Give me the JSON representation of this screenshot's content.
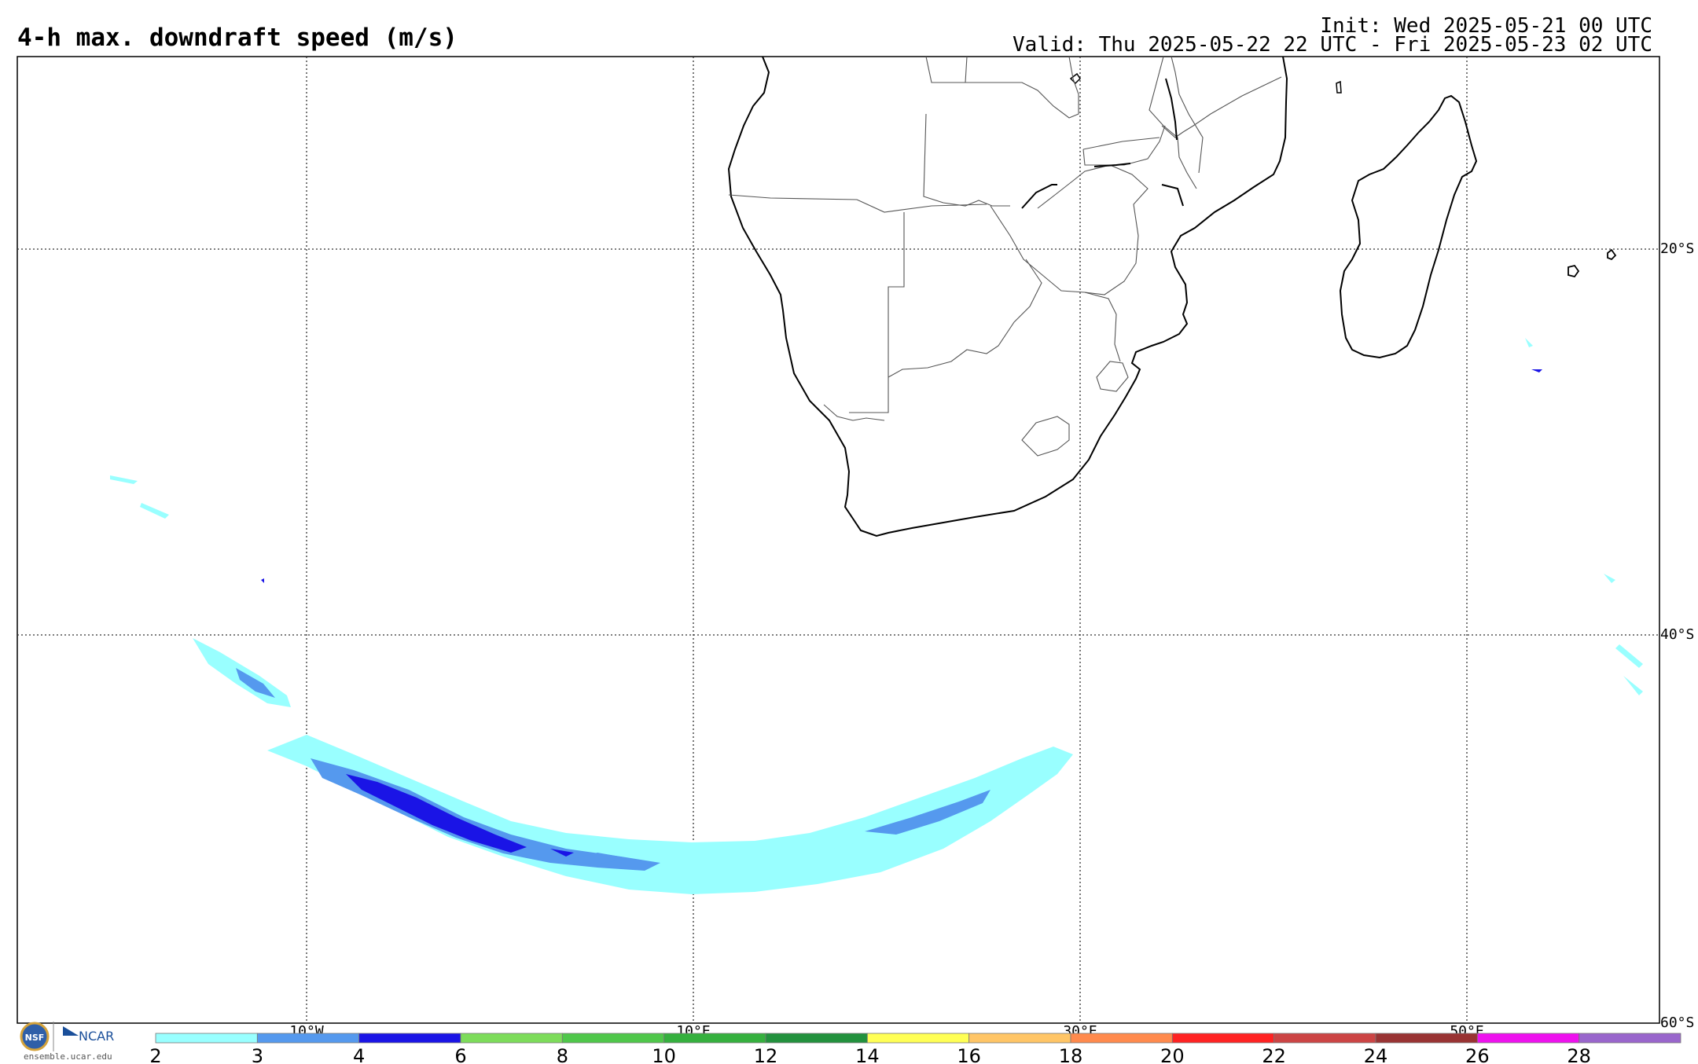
{
  "title": "4-h max. downdraft speed (m/s)",
  "init": "Init: Wed 2025-05-21 00 UTC",
  "valid": "Valid: Thu 2025-05-22 22 UTC - Fri 2025-05-23 02 UTC",
  "map": {
    "lon_labels": [
      "10°W",
      "10°E",
      "30°E",
      "50°E"
    ],
    "lat_labels": [
      "20°S",
      "40°S",
      "60°S"
    ],
    "gridline_style": "dotted"
  },
  "colorbar": {
    "levels": [
      "2",
      "3",
      "4",
      "6",
      "8",
      "10",
      "12",
      "14",
      "16",
      "18",
      "20",
      "22",
      "24",
      "26",
      "28"
    ],
    "colors": [
      "#99ffff",
      "#5599ee",
      "#1a14e6",
      "#7ddc5a",
      "#4fc74a",
      "#35b03e",
      "#22913d",
      "#ffff55",
      "#ffc566",
      "#ff8a4d",
      "#ff2222",
      "#cc4444",
      "#993333",
      "#ee11ee",
      "#9966cc"
    ]
  },
  "logo": {
    "nsf": "NSF",
    "ncar": "NCAR",
    "site": "ensemble.ucar.edu"
  }
}
